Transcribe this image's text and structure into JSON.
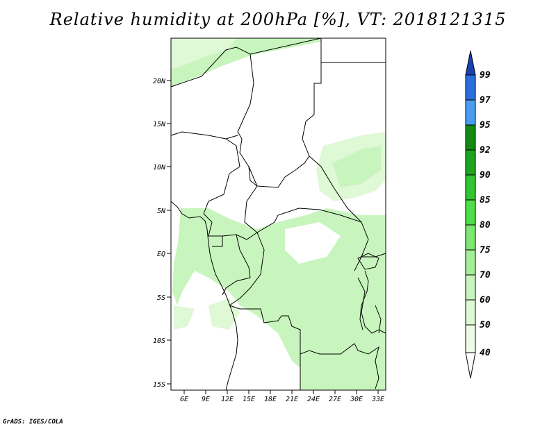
{
  "title": "Relative humidity at 200hPa [%], VT: 2018121315",
  "credit": "GrADS: IGES/COLA",
  "map": {
    "lat_labels": [
      "20N",
      "15N",
      "10N",
      "5N",
      "EQ",
      "5S",
      "10S",
      "15S"
    ],
    "lon_labels": [
      "6E",
      "9E",
      "12E",
      "15E",
      "18E",
      "21E",
      "24E",
      "27E",
      "30E",
      "33E"
    ]
  },
  "colorbar": {
    "labels": [
      "99",
      "97",
      "95",
      "92",
      "90",
      "85",
      "80",
      "75",
      "70",
      "60",
      "50",
      "40"
    ],
    "colors": [
      "#ffffff",
      "#eefbe9",
      "#c8f5bd",
      "#a3ef97",
      "#7ce772",
      "#4fdd49",
      "#33c433",
      "#1ea41e",
      "#138b13",
      "#4a9ef2",
      "#2b6fdd",
      "#1f4fc4",
      "#1a3fb0"
    ]
  },
  "colors": {
    "land_border": "#000000",
    "humidity_light": "#c8f5bd",
    "humidity_lighter": "#dff8d6"
  }
}
